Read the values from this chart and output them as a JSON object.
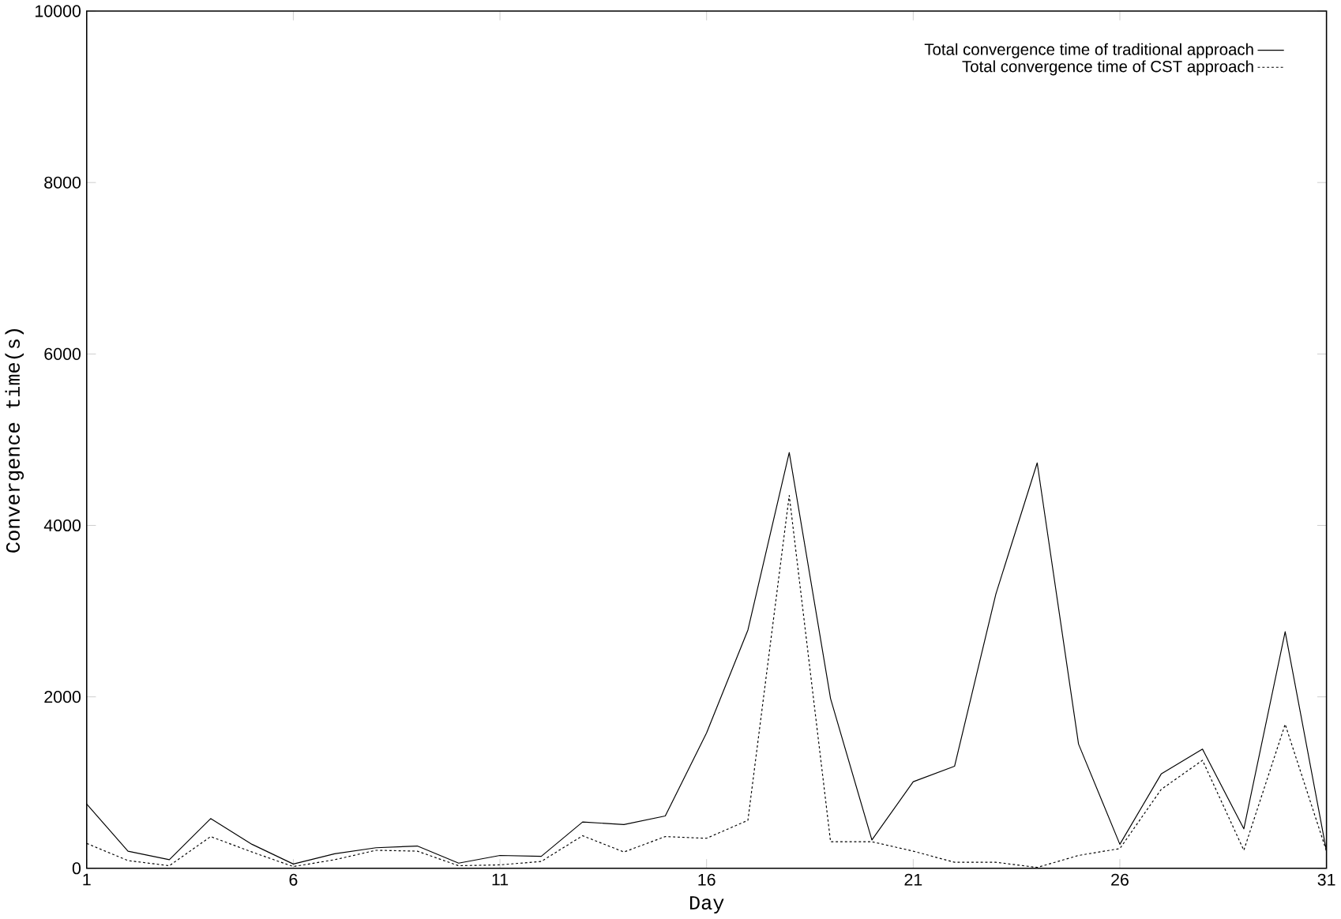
{
  "chart_data": {
    "type": "line",
    "xlabel": "Day",
    "ylabel": "Convergence time(s)",
    "x": [
      1,
      2,
      3,
      4,
      5,
      6,
      7,
      8,
      9,
      10,
      11,
      12,
      13,
      14,
      15,
      16,
      17,
      18,
      19,
      20,
      21,
      22,
      23,
      24,
      25,
      26,
      27,
      28,
      29,
      30,
      31
    ],
    "series": [
      {
        "name": "Total convergence time of traditional approach",
        "color": "#000000",
        "line_style": "solid",
        "values": [
          750,
          200,
          100,
          580,
          280,
          50,
          170,
          240,
          260,
          60,
          150,
          140,
          540,
          510,
          610,
          1580,
          2780,
          4850,
          1980,
          330,
          1010,
          1190,
          3200,
          4730,
          1450,
          280,
          1100,
          1390,
          460,
          2760,
          200
        ]
      },
      {
        "name": "Total convergence time of CST approach",
        "color": "#000000",
        "line_style": "dotted",
        "values": [
          290,
          90,
          30,
          370,
          190,
          20,
          100,
          210,
          200,
          30,
          40,
          80,
          380,
          190,
          370,
          350,
          560,
          4350,
          310,
          310,
          200,
          70,
          70,
          10,
          150,
          230,
          920,
          1260,
          210,
          1680,
          200
        ]
      }
    ],
    "xlim": [
      1,
      31
    ],
    "xticks": [
      1,
      6,
      11,
      16,
      21,
      26,
      31
    ],
    "ylim": [
      0,
      10000
    ],
    "yticks": [
      0,
      2000,
      4000,
      6000,
      8000,
      10000
    ],
    "grid": false,
    "legend": "top right",
    "marker": "none"
  }
}
